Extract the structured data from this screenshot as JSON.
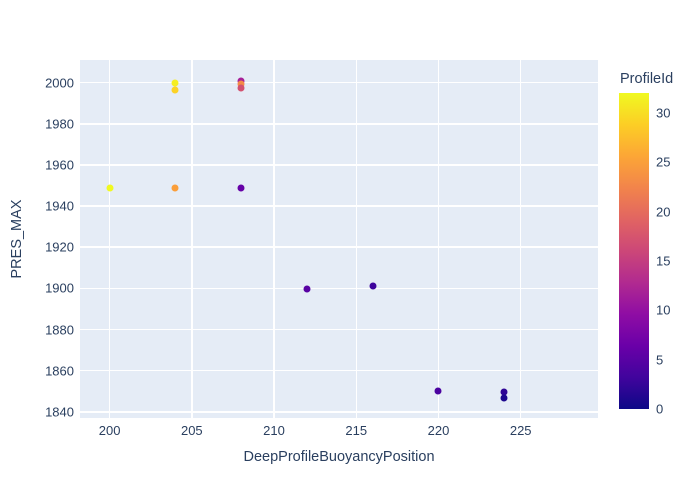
{
  "chart_data": {
    "type": "scatter",
    "title": "",
    "xlabel": "DeepProfileBuoyancyPosition",
    "ylabel": "PRES_MAX",
    "xlim": [
      198.2,
      229.7
    ],
    "ylim": [
      1837,
      2011
    ],
    "x_ticks": [
      200,
      205,
      210,
      215,
      220,
      225
    ],
    "y_ticks": [
      1840,
      1860,
      1880,
      1900,
      1920,
      1940,
      1960,
      1980,
      2000
    ],
    "grid": true,
    "legend_position": "colorbar-right",
    "marker_size_px": 7,
    "points": [
      {
        "x": 200,
        "y": 1949,
        "c": 32,
        "color": "#f0f921"
      },
      {
        "x": 204,
        "y": 2000,
        "c": 31,
        "color": "#f5ee22"
      },
      {
        "x": 204,
        "y": 1996.5,
        "c": 29,
        "color": "#fcd225"
      },
      {
        "x": 204,
        "y": 1949,
        "c": 25,
        "color": "#fa9e3a"
      },
      {
        "x": 208,
        "y": 2001,
        "c": 11,
        "color": "#a62098"
      },
      {
        "x": 208,
        "y": 1999.5,
        "c": 23,
        "color": "#f48b47"
      },
      {
        "x": 208,
        "y": 1997.5,
        "c": 17,
        "color": "#d3526f"
      },
      {
        "x": 208,
        "y": 1949,
        "c": 6,
        "color": "#6601a7"
      },
      {
        "x": 212,
        "y": 1899.5,
        "c": 5,
        "color": "#5802a3"
      },
      {
        "x": 216,
        "y": 1901,
        "c": 3,
        "color": "#3e049c"
      },
      {
        "x": 220,
        "y": 1850,
        "c": 4,
        "color": "#4b03a0"
      },
      {
        "x": 224,
        "y": 1849.5,
        "c": 2,
        "color": "#2e0595"
      },
      {
        "x": 224,
        "y": 1846.5,
        "c": 1,
        "color": "#1c078e"
      }
    ],
    "colorbar": {
      "title": "ProfileId",
      "min": 0,
      "max": 32,
      "ticks": [
        0,
        5,
        10,
        15,
        20,
        25,
        30
      ],
      "colormap": "plasma",
      "gradient_stops": [
        "#0d0887",
        "#41049d",
        "#6a00a8",
        "#8f0da4",
        "#b12a90",
        "#cc4778",
        "#e16462",
        "#f2844b",
        "#fca636",
        "#fcce25",
        "#f0f921"
      ]
    },
    "colors": {
      "plot_bg": "#e5ecf6",
      "grid": "#ffffff",
      "text": "#2a3f5f",
      "paper_bg": "#ffffff"
    }
  }
}
